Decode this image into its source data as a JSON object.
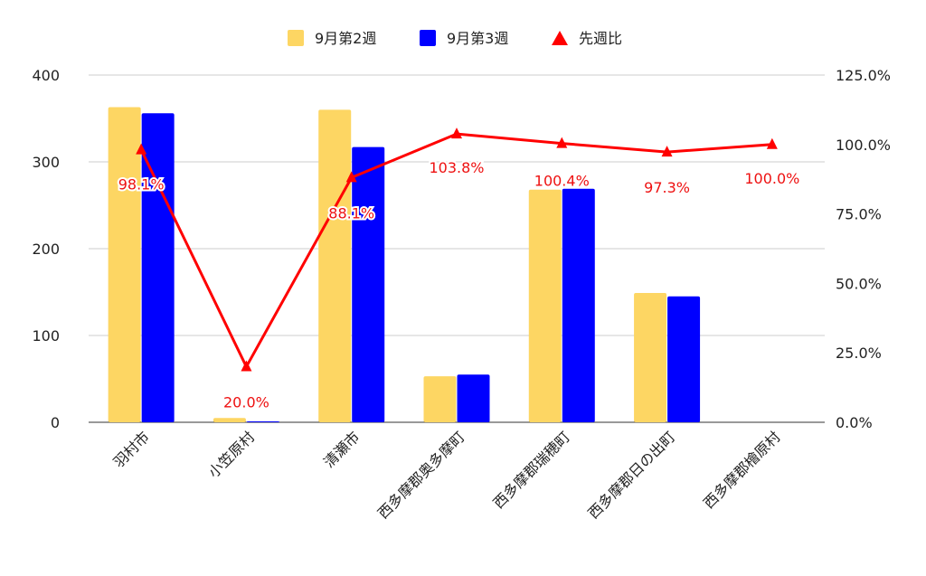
{
  "chart_data": {
    "type": "bar",
    "categories": [
      "羽村市",
      "小笠原村",
      "清瀬市",
      "西多摩郡奥多摩町",
      "西多摩郡瑞穂町",
      "西多摩郡日の出町",
      "西多摩郡檜原村"
    ],
    "series": [
      {
        "name": "9月第2週",
        "type": "bar",
        "axis": "left",
        "color": "#fdd663",
        "values": [
          363,
          5,
          360,
          53,
          268,
          149,
          0
        ]
      },
      {
        "name": "9月第3週",
        "type": "bar",
        "axis": "left",
        "color": "#0000ff",
        "values": [
          356,
          1,
          317,
          55,
          269,
          145,
          0
        ]
      },
      {
        "name": "先週比",
        "type": "line",
        "axis": "right",
        "color": "#ff0000",
        "values": [
          98.1,
          20.0,
          88.1,
          103.8,
          100.4,
          97.3,
          100.0
        ],
        "labels": [
          "98.1%",
          "20.0%",
          "88.1%",
          "103.8%",
          "100.4%",
          "97.3%",
          "100.0%"
        ]
      }
    ],
    "y_left": {
      "ylim": [
        0,
        400
      ],
      "ticks": [
        "0",
        "100",
        "200",
        "300",
        "400"
      ]
    },
    "y_right": {
      "ylim": [
        0,
        125
      ],
      "ticks": [
        "0.0%",
        "25.0%",
        "50.0%",
        "75.0%",
        "100.0%",
        "125.0%"
      ]
    },
    "legend": {
      "position": "top"
    },
    "grid": true
  }
}
